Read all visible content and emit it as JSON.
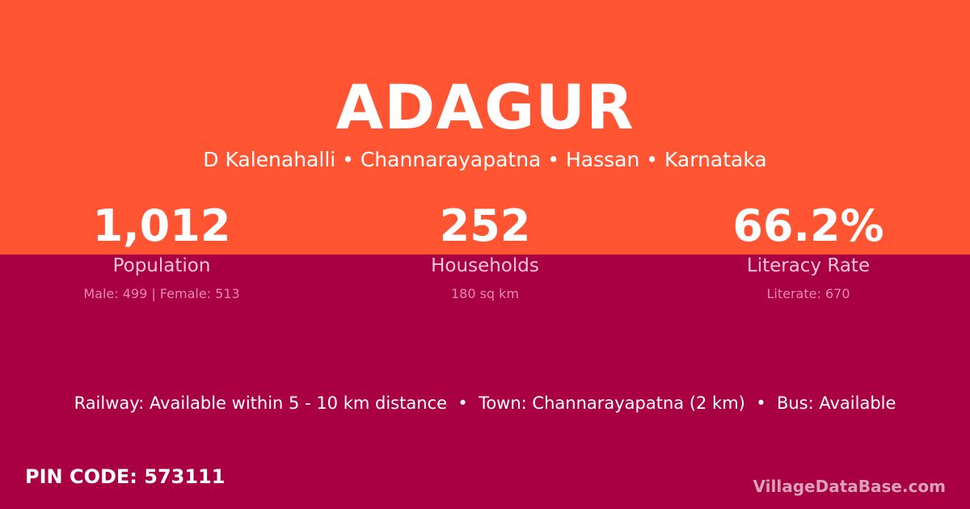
{
  "title": "ADAGUR",
  "location": "D Kalenahalli • Channarayapatna • Hassan • Karnataka",
  "stats": [
    {
      "value": "1,012",
      "label": "Population",
      "detail": "Male: 499 | Female: 513"
    },
    {
      "value": "252",
      "label": "Households",
      "detail": "180 sq km"
    },
    {
      "value": "66.2%",
      "label": "Literacy Rate",
      "detail": "Literate: 670"
    }
  ],
  "connectivity": "Railway: Available within 5 - 10 km distance  •  Town: Channarayapatna (2 km)  •  Bus: Available",
  "pin_code": "PIN CODE: 573111",
  "brand": "VillageDataBase.com",
  "colors": {
    "top": "#ff5533",
    "bottom": "#a80042"
  }
}
